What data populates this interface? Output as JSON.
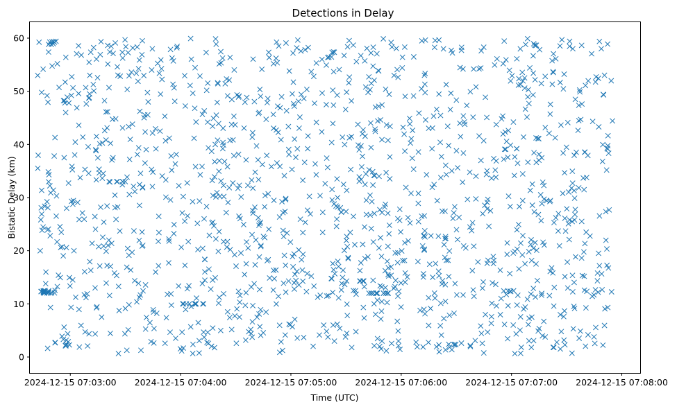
{
  "chart_data": {
    "type": "scatter",
    "title": "Detections in Delay",
    "xlabel": "Time (UTC)",
    "ylabel": "Bistatic Delay (km)",
    "x_unit": "seconds after 2024-12-15 07:03:00 UTC",
    "xlim": [
      -22,
      310
    ],
    "ylim": [
      -3,
      63
    ],
    "xticks": [
      0,
      60,
      120,
      180,
      240,
      300
    ],
    "xtick_labels": [
      "2024-12-15 07:03:00",
      "2024-12-15 07:04:00",
      "2024-12-15 07:05:00",
      "2024-12-15 07:06:00",
      "2024-12-15 07:07:00",
      "2024-12-15 07:08:00"
    ],
    "yticks": [
      0,
      10,
      20,
      30,
      40,
      50,
      60
    ],
    "ytick_labels": [
      "0",
      "10",
      "20",
      "30",
      "40",
      "50",
      "60"
    ],
    "marker": "x",
    "marker_color": "#1f77b4",
    "grid": false,
    "legend": "none",
    "series": [
      {
        "name": "detections",
        "generated_count": 1400,
        "x_range": [
          -18,
          295
        ],
        "y_range": [
          0.5,
          60
        ],
        "clusters": [
          {
            "x": [
              -16,
              -7
            ],
            "y": [
              12,
              12.5
            ],
            "count": 18
          },
          {
            "x": [
              -12,
              -8
            ],
            "y": [
              58.7,
              59.3
            ],
            "count": 6
          },
          {
            "x": [
              -10,
              0
            ],
            "y": [
              2,
              3.5
            ],
            "count": 8
          },
          {
            "x": [
              60,
              73
            ],
            "y": [
              10,
              10
            ],
            "count": 10
          },
          {
            "x": [
              160,
              173
            ],
            "y": [
              12,
              12
            ],
            "count": 12
          },
          {
            "x": [
              150,
              165
            ],
            "y": [
              14.3,
              14.3
            ],
            "count": 6
          },
          {
            "x": [
              200,
              210
            ],
            "y": [
              2.2,
              2.4
            ],
            "count": 5
          },
          {
            "x": [
              235,
              242
            ],
            "y": [
              12.3,
              12.6
            ],
            "count": 5
          },
          {
            "x": [
              20,
              30
            ],
            "y": [
              33,
              33
            ],
            "count": 6
          },
          {
            "x": [
              245,
              255
            ],
            "y": [
              58.5,
              59.3
            ],
            "count": 5
          }
        ]
      }
    ]
  }
}
